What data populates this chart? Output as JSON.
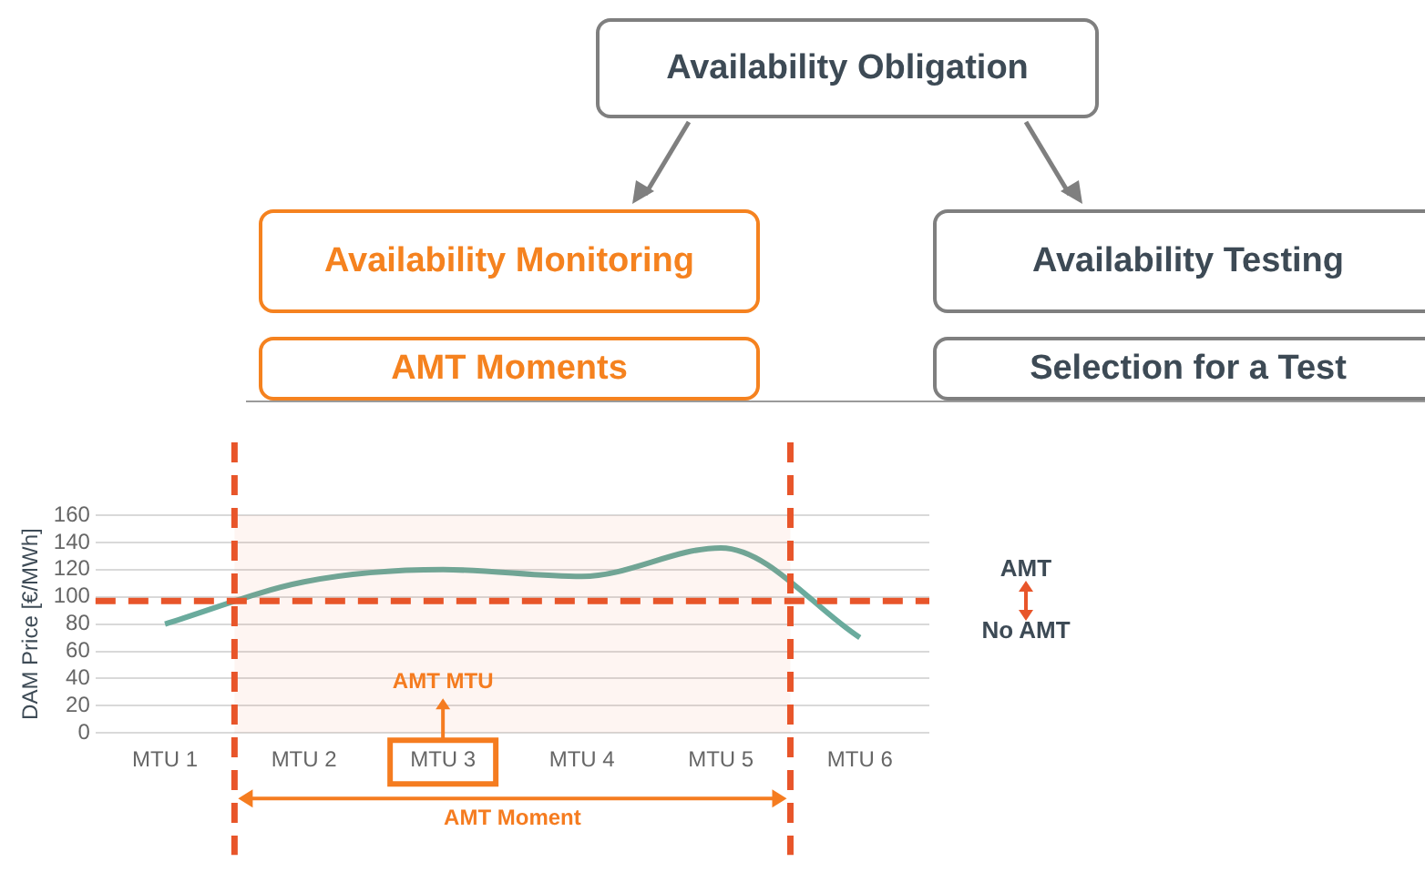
{
  "chart_data": {
    "type": "line",
    "ylabel": "DAM Price [€/MWh]",
    "categories": [
      "MTU 1",
      "MTU 2",
      "MTU 3",
      "MTU 4",
      "MTU 5",
      "MTU 6"
    ],
    "series": [
      {
        "color": "#6aab9d",
        "values": [
          80,
          111,
          120,
          115,
          136,
          70
        ]
      }
    ],
    "ylim": [
      0,
      160
    ],
    "yticks": [
      0,
      20,
      40,
      60,
      80,
      100,
      120,
      140,
      160
    ],
    "ref_lines": [
      {
        "axis": "y",
        "value": 97,
        "color": "#e8552a",
        "line_style": "dashed"
      }
    ],
    "bands": [
      {
        "axis": "x",
        "from": "MTU 2",
        "to": "MTU 5",
        "label": "AMT Moment",
        "color": "#e8552a"
      }
    ],
    "annotations": [
      "AMT MTU",
      "AMT",
      "No AMT",
      "Availability Obligation",
      "Availability Monitoring",
      "AMT Moments",
      "Availability Testing",
      "Selection for a Test"
    ],
    "grid": "y",
    "legend": false,
    "marker": "none",
    "line_style": "solid"
  }
}
